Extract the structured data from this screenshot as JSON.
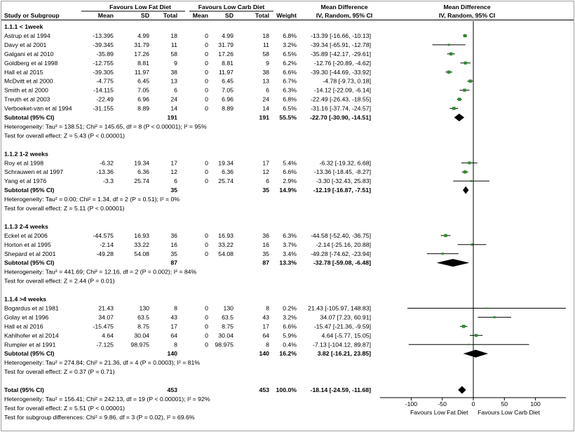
{
  "header": {
    "group1": "Favours Low Fat Diet",
    "group2": "Favours Low Carb Diet",
    "col_study": "Study or Subgroup",
    "col_mean": "Mean",
    "col_sd": "SD",
    "col_total": "Total",
    "col_weight": "Weight",
    "col_md": "Mean Difference",
    "col_md_sub": "IV, Random, 95% CI"
  },
  "colors": {
    "study_marker": "#2e8b2e",
    "diamond": "#000000",
    "line": "#000000"
  },
  "chart_data": {
    "type": "forest",
    "x_axis": {
      "min": -100,
      "max": 100,
      "ticks": [
        -100,
        -50,
        0,
        50,
        100
      ],
      "tick_labels": [
        "-100",
        "-50",
        "0",
        "50",
        "100"
      ],
      "left_label": "Favours Low Fat Diet",
      "right_label": "Favours Low Carb Diet"
    },
    "groups": [
      {
        "title": "1.1.1 < 1week",
        "studies": [
          {
            "name": "Astrup et al 1994",
            "m1": "-13.395",
            "sd1": "4.99",
            "n1": "18",
            "m2": "0",
            "sd2": "4.99",
            "n2": "18",
            "weight": "6.8%",
            "ci": "-13.39 [-16.66, -10.13]",
            "est": -13.39,
            "lo": -16.66,
            "hi": -10.13
          },
          {
            "name": "Davy et al 2001",
            "m1": "-39.345",
            "sd1": "31.79",
            "n1": "11",
            "m2": "0",
            "sd2": "31.79",
            "n2": "11",
            "weight": "3.2%",
            "ci": "-39.34 [-65.91, -12.78]",
            "est": -39.34,
            "lo": -65.91,
            "hi": -12.78
          },
          {
            "name": "Galgani et al 2010",
            "m1": "-35.89",
            "sd1": "17.26",
            "n1": "58",
            "m2": "0",
            "sd2": "17.26",
            "n2": "58",
            "weight": "6.5%",
            "ci": "-35.89 [-42.17, -29.61]",
            "est": -35.89,
            "lo": -42.17,
            "hi": -29.61
          },
          {
            "name": "Goldberg et al 1998",
            "m1": "-12.755",
            "sd1": "8.81",
            "n1": "9",
            "m2": "0",
            "sd2": "8.81",
            "n2": "9",
            "weight": "6.2%",
            "ci": "-12.76 [-20.89, -4.62]",
            "est": -12.76,
            "lo": -20.89,
            "hi": -4.62
          },
          {
            "name": "Hall et al 2015",
            "m1": "-39.305",
            "sd1": "11.97",
            "n1": "38",
            "m2": "0",
            "sd2": "11.97",
            "n2": "38",
            "weight": "6.6%",
            "ci": "-39.30 [-44.69, -33.92]",
            "est": -39.3,
            "lo": -44.69,
            "hi": -33.92
          },
          {
            "name": "McDvitt et al 2000",
            "m1": "-4.775",
            "sd1": "6.45",
            "n1": "13",
            "m2": "0",
            "sd2": "6.45",
            "n2": "13",
            "weight": "6.7%",
            "ci": "-4.78 [-9.73, 0.18]",
            "est": -4.78,
            "lo": -9.73,
            "hi": 0.18
          },
          {
            "name": "Smith et al 2000",
            "m1": "-14.115",
            "sd1": "7.05",
            "n1": "6",
            "m2": "0",
            "sd2": "7.05",
            "n2": "6",
            "weight": "6.3%",
            "ci": "-14.12 [-22.09, -6.14]",
            "est": -14.12,
            "lo": -22.09,
            "hi": -6.14
          },
          {
            "name": "Treuth et al 2003",
            "m1": "-22.49",
            "sd1": "6.96",
            "n1": "24",
            "m2": "0",
            "sd2": "6.96",
            "n2": "24",
            "weight": "6.8%",
            "ci": "-22.49 [-26.43, -18.55]",
            "est": -22.49,
            "lo": -26.43,
            "hi": -18.55
          },
          {
            "name": "Verboeket-van et al 1994",
            "m1": "-31.155",
            "sd1": "8.89",
            "n1": "14",
            "m2": "0",
            "sd2": "8.89",
            "n2": "14",
            "weight": "6.5%",
            "ci": "-31.16 [-37.74, -24.57]",
            "est": -31.16,
            "lo": -37.74,
            "hi": -24.57
          }
        ],
        "subtotal": {
          "label": "Subtotal (95% CI)",
          "n1": "191",
          "n2": "191",
          "weight": "55.5%",
          "ci": "-22.70 [-30.90, -14.51]",
          "est": -22.7,
          "lo": -30.9,
          "hi": -14.51
        },
        "heterogeneity": "Heterogeneity: Tau² = 138.51; Chi² = 145.65, df = 8 (P < 0.00001); I² = 95%",
        "overall_test": "Test for overall effect: Z = 5.43 (P < 0.00001)"
      },
      {
        "title": "1.1.2 1-2 weeks",
        "studies": [
          {
            "name": "Roy et al 1998",
            "m1": "-6.32",
            "sd1": "19.34",
            "n1": "17",
            "m2": "0",
            "sd2": "19.34",
            "n2": "17",
            "weight": "5.4%",
            "ci": "-6.32 [-19.32, 6.68]",
            "est": -6.32,
            "lo": -19.32,
            "hi": 6.68
          },
          {
            "name": "Schrauwen et al 1997",
            "m1": "-13.36",
            "sd1": "6.36",
            "n1": "12",
            "m2": "0",
            "sd2": "6.36",
            "n2": "12",
            "weight": "6.6%",
            "ci": "-13.36 [-18.45, -8.27]",
            "est": -13.36,
            "lo": -18.45,
            "hi": -8.27
          },
          {
            "name": "Yang et al 1976",
            "m1": "-3.3",
            "sd1": "25.74",
            "n1": "6",
            "m2": "0",
            "sd2": "25.74",
            "n2": "6",
            "weight": "2.9%",
            "ci": "-3.30 [-32.43, 25.83]",
            "est": -3.3,
            "lo": -32.43,
            "hi": 25.83
          }
        ],
        "subtotal": {
          "label": "Subtotal (95% CI)",
          "n1": "35",
          "n2": "35",
          "weight": "14.9%",
          "ci": "-12.19 [-16.87, -7.51]",
          "est": -12.19,
          "lo": -16.87,
          "hi": -7.51
        },
        "heterogeneity": "Heterogeneity: Tau² = 0.00; Chi² = 1.34, df = 2 (P = 0.51); I² = 0%",
        "overall_test": "Test for overall effect: Z = 5.11 (P < 0.00001)"
      },
      {
        "title": "1.1.3 2-4 weeks",
        "studies": [
          {
            "name": "Eckel et al 2006",
            "m1": "-44.575",
            "sd1": "16.93",
            "n1": "36",
            "m2": "0",
            "sd2": "16.93",
            "n2": "36",
            "weight": "6.3%",
            "ci": "-44.58 [-52.40, -36.75]",
            "est": -44.58,
            "lo": -52.4,
            "hi": -36.75
          },
          {
            "name": "Horton et al 1995",
            "m1": "-2.14",
            "sd1": "33.22",
            "n1": "16",
            "m2": "0",
            "sd2": "33.22",
            "n2": "16",
            "weight": "3.7%",
            "ci": "-2.14 [-25.16, 20.88]",
            "est": -2.14,
            "lo": -25.16,
            "hi": 20.88
          },
          {
            "name": "Shepard et al 2001",
            "m1": "-49.28",
            "sd1": "54.08",
            "n1": "35",
            "m2": "0",
            "sd2": "54.08",
            "n2": "35",
            "weight": "3.4%",
            "ci": "-49.28 [-74.62, -23.94]",
            "est": -49.28,
            "lo": -74.62,
            "hi": -23.94
          }
        ],
        "subtotal": {
          "label": "Subtotal (95% CI)",
          "n1": "87",
          "n2": "87",
          "weight": "13.3%",
          "ci": "-32.78 [-59.08, -6.48]",
          "est": -32.78,
          "lo": -59.08,
          "hi": -6.48
        },
        "heterogeneity": "Heterogeneity: Tau² = 441.69; Chi² = 12.16, df = 2 (P = 0.002); I² = 84%",
        "overall_test": "Test for overall effect: Z = 2.44 (P = 0.01)"
      },
      {
        "title": "1.1.4 >4 weeks",
        "studies": [
          {
            "name": "Bogardus et al 1981",
            "m1": "21.43",
            "sd1": "130",
            "n1": "8",
            "m2": "0",
            "sd2": "130",
            "n2": "8",
            "weight": "0.2%",
            "ci": "21.43 [-105.97, 148.83]",
            "est": 21.43,
            "lo": -105.97,
            "hi": 148.83
          },
          {
            "name": "Golay et al 1996",
            "m1": "34.07",
            "sd1": "63.5",
            "n1": "43",
            "m2": "0",
            "sd2": "63.5",
            "n2": "43",
            "weight": "3.2%",
            "ci": "34.07 [7.23, 60.91]",
            "est": 34.07,
            "lo": 7.23,
            "hi": 60.91
          },
          {
            "name": "Hall et al 2016",
            "m1": "-15.475",
            "sd1": "8.75",
            "n1": "17",
            "m2": "0",
            "sd2": "8.75",
            "n2": "17",
            "weight": "6.6%",
            "ci": "-15.47 [-21.36, -9.59]",
            "est": -15.47,
            "lo": -21.36,
            "hi": -9.59
          },
          {
            "name": "Kahlhofer et al 2014",
            "m1": "4.64",
            "sd1": "30.04",
            "n1": "64",
            "m2": "0",
            "sd2": "30.04",
            "n2": "64",
            "weight": "5.9%",
            "ci": "4.64 [-5.77, 15.05]",
            "est": 4.64,
            "lo": -5.77,
            "hi": 15.05
          },
          {
            "name": "Rumpler et al 1991",
            "m1": "-7.125",
            "sd1": "98.975",
            "n1": "8",
            "m2": "0",
            "sd2": "98.975",
            "n2": "8",
            "weight": "0.4%",
            "ci": "-7.13 [-104.12, 89.87]",
            "est": -7.13,
            "lo": -104.12,
            "hi": 89.87
          }
        ],
        "subtotal": {
          "label": "Subtotal (95% CI)",
          "n1": "140",
          "n2": "140",
          "weight": "16.2%",
          "ci": "3.82 [-16.21, 23.85]",
          "est": 3.82,
          "lo": -16.21,
          "hi": 23.85
        },
        "heterogeneity": "Heterogeneity: Tau² = 274.84; Chi² = 21.36, df = 4 (P = 0.0003); I² = 81%",
        "overall_test": "Test for overall effect: Z = 0.37 (P = 0.71)"
      }
    ],
    "total": {
      "label": "Total (95% CI)",
      "n1": "453",
      "n2": "453",
      "weight": "100.0%",
      "ci": "-18.14 [-24.59, -11.68]",
      "est": -18.14,
      "lo": -24.59,
      "hi": -11.68
    },
    "footer": [
      "Heterogeneity: Tau² = 156.41; Chi² = 242.13, df = 19 (P < 0.00001); I² = 92%",
      "Test for overall effect: Z = 5.51 (P < 0.00001)",
      "Test for subgroup differences: Chi² = 9.86, df = 3 (P = 0.02), I² = 69.6%"
    ]
  }
}
